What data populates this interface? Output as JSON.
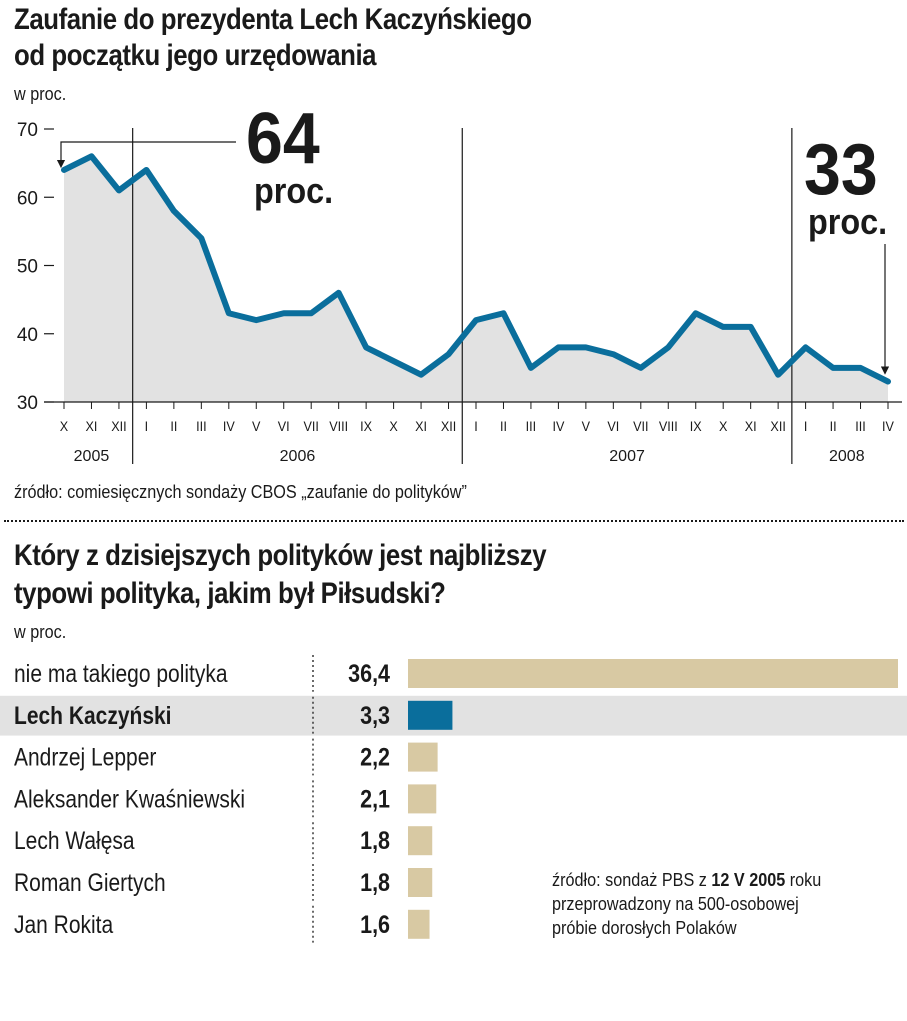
{
  "chart_data": [
    {
      "type": "line",
      "title": "Zaufanie do prezydenta Lech Kaczyńskiego od początku jego urzędowania",
      "title_lines": [
        "Zaufanie do prezydenta Lech Kaczyńskiego",
        "od początku jego urzędowania"
      ],
      "unit": "w proc.",
      "ylim": [
        30,
        70
      ],
      "yticks": [
        30,
        40,
        50,
        60,
        70
      ],
      "x": [
        "X",
        "XI",
        "XII",
        "I",
        "II",
        "III",
        "IV",
        "V",
        "VI",
        "VII",
        "VIII",
        "IX",
        "X",
        "XI",
        "XII",
        "I",
        "II",
        "III",
        "IV",
        "V",
        "VI",
        "VII",
        "VIII",
        "IX",
        "X",
        "XI",
        "XII",
        "I",
        "II",
        "III",
        "IV"
      ],
      "years": [
        {
          "label": "2005",
          "from": 0,
          "to": 2
        },
        {
          "label": "2006",
          "from": 3,
          "to": 14
        },
        {
          "label": "2007",
          "from": 15,
          "to": 26
        },
        {
          "label": "2008",
          "from": 27,
          "to": 30
        }
      ],
      "series": [
        {
          "values": [
            64,
            66,
            61,
            64,
            58,
            54,
            43,
            42,
            43,
            43,
            46,
            38,
            36,
            34,
            37,
            42,
            43,
            35,
            38,
            38,
            37,
            35,
            38,
            43,
            41,
            41,
            34,
            38,
            35,
            35,
            33
          ]
        }
      ],
      "annotations": [
        {
          "point_index": 0,
          "value": "64",
          "unit": "proc."
        },
        {
          "point_index": 30,
          "value": "33",
          "unit": "proc."
        }
      ],
      "colors": {
        "line": "#0a6e9c",
        "area": "#e2e2e2",
        "text": "#1a1a1a"
      },
      "grid": false,
      "source": "źródło: comiesięcznych sondaży CBOS „zaufanie do polityków”"
    },
    {
      "type": "bar",
      "title": "Który z dzisiejszych polityków jest najbliższy typowi polityka, jakim był Piłsudski?",
      "title_lines": [
        "Który z dzisiejszych polityków jest najbliższy",
        "typowi polityka, jakim był Piłsudski?"
      ],
      "unit": "w proc.",
      "categories": [
        "nie ma takiego polityka",
        "Lech Kaczyński",
        "Andrzej Lepper",
        "Aleksander Kwaśniewski",
        "Lech Wałęsa",
        "Roman Giertych",
        "Jan Rokita"
      ],
      "value_labels": [
        "36,4",
        "3,3",
        "2,2",
        "2,1",
        "1,8",
        "1,8",
        "1,6"
      ],
      "values": [
        36.4,
        3.3,
        2.2,
        2.1,
        1.8,
        1.8,
        1.6
      ],
      "highlight_index": 1,
      "colors": {
        "bar": "#d8c9a3",
        "highlight_bar": "#0a6e9c",
        "highlight_row": "#e2e2e2"
      },
      "source_lines": [
        [
          {
            "text": "źródło: sondaż PBS z ",
            "bold": false
          },
          {
            "text": "12 V 2005",
            "bold": true
          },
          {
            "text": " roku",
            "bold": false
          }
        ],
        [
          {
            "text": "przeprowadzony na 500-osobowej",
            "bold": false
          }
        ],
        [
          {
            "text": "próbie dorosłych Polaków",
            "bold": false
          }
        ]
      ]
    }
  ]
}
